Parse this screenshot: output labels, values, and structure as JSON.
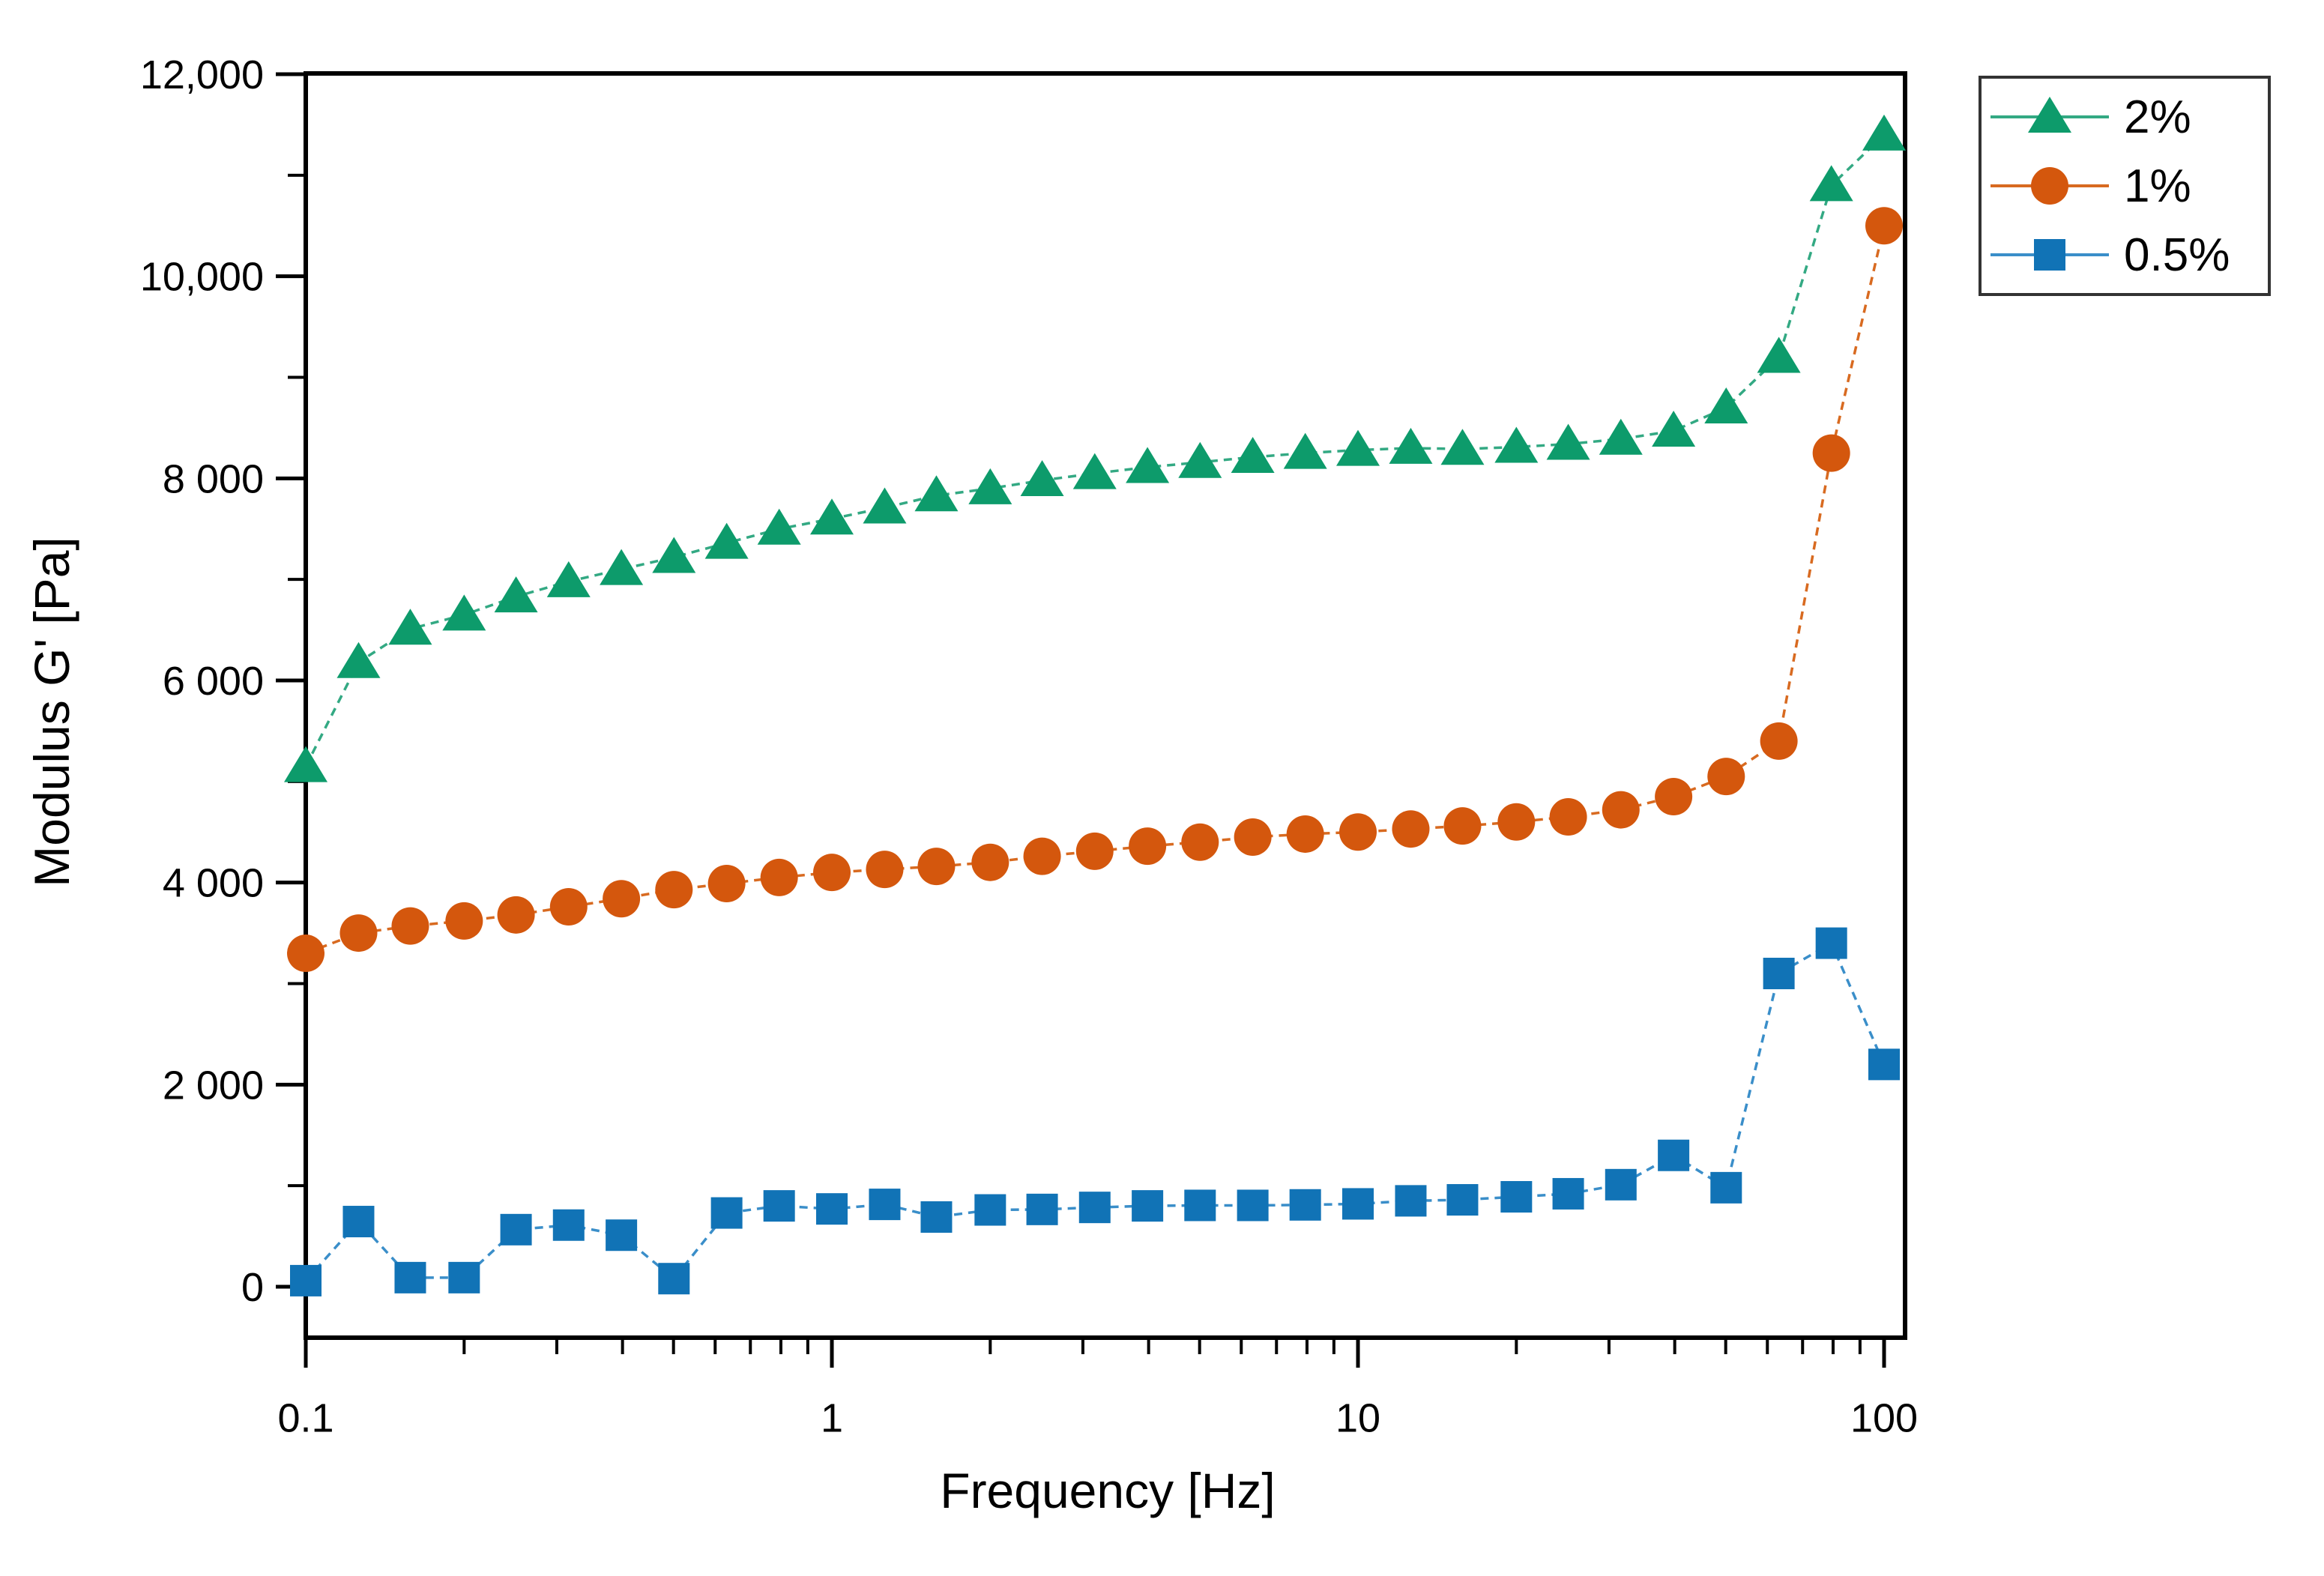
{
  "chart_data": {
    "type": "line",
    "title": "",
    "xlabel": "Frequency [Hz]",
    "ylabel": "Modulus G' [Pa]",
    "x_scale": "log",
    "x_range": [
      0.1,
      110
    ],
    "y_range": [
      -500,
      12000
    ],
    "grid": false,
    "legend_position": "top-right-outside",
    "x_major_ticks": [
      0.1,
      1,
      10,
      100
    ],
    "x_tick_labels": [
      "0.1",
      "1",
      "10",
      "100"
    ],
    "y_tick_values": [
      0,
      2000,
      4000,
      6000,
      8000,
      10000,
      12000
    ],
    "y_tick_labels": [
      "0",
      "2 000",
      "4 000",
      "6 000",
      "8 000",
      "10,000",
      "12,000"
    ],
    "x": [
      0.1,
      0.126,
      0.158,
      0.2,
      0.251,
      0.316,
      0.398,
      0.501,
      0.631,
      0.794,
      1,
      1.26,
      1.58,
      2,
      2.51,
      3.16,
      3.98,
      5.01,
      6.31,
      7.94,
      10,
      12.6,
      15.8,
      20,
      25.1,
      31.6,
      39.8,
      50.1,
      63.1,
      79.4,
      100
    ],
    "series": [
      {
        "name": "2%",
        "marker": "triangle",
        "color": "#0d9b6b",
        "line_color": "#33a983",
        "values": [
          5150,
          6180,
          6510,
          6650,
          6830,
          6980,
          7100,
          7220,
          7360,
          7500,
          7600,
          7710,
          7830,
          7900,
          7980,
          8050,
          8110,
          8160,
          8210,
          8250,
          8280,
          8300,
          8290,
          8310,
          8340,
          8390,
          8470,
          8700,
          9200,
          10900,
          11400
        ]
      },
      {
        "name": "1%",
        "marker": "circle",
        "color": "#d4570d",
        "line_color": "#d86a20",
        "values": [
          3300,
          3500,
          3570,
          3620,
          3680,
          3760,
          3840,
          3930,
          3990,
          4050,
          4100,
          4130,
          4160,
          4200,
          4260,
          4310,
          4360,
          4400,
          4450,
          4480,
          4500,
          4530,
          4560,
          4600,
          4650,
          4720,
          4850,
          5050,
          5400,
          8250,
          10500
        ]
      },
      {
        "name": "0.5%",
        "marker": "square",
        "color": "#1173b6",
        "line_color": "#3a8ec9",
        "values": [
          60,
          645,
          90,
          90,
          565,
          610,
          510,
          80,
          730,
          800,
          770,
          815,
          690,
          760,
          765,
          785,
          800,
          805,
          805,
          810,
          820,
          850,
          860,
          890,
          920,
          1010,
          1300,
          980,
          3100,
          3400,
          2200
        ]
      }
    ]
  }
}
